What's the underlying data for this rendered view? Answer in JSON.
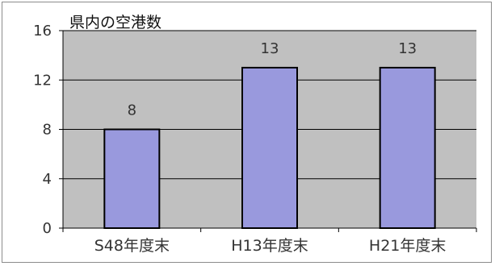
{
  "chart_data": {
    "type": "bar",
    "title": "県内の空港数",
    "categories": [
      "S48年度末",
      "H13年度末",
      "H21年度末"
    ],
    "values": [
      8,
      13,
      13
    ],
    "data_labels": [
      "8",
      "13",
      "13"
    ],
    "ylim": [
      0,
      16
    ],
    "yticks": [
      0,
      4,
      8,
      12,
      16
    ],
    "xlabel": "",
    "ylabel": "",
    "grid": true,
    "legend": "none",
    "colors": {
      "plot_background": "#c0c0c0",
      "bar_fill": "#9999dd",
      "bar_stroke": "#000000",
      "gridline": "#000000",
      "text": "#333333"
    }
  }
}
